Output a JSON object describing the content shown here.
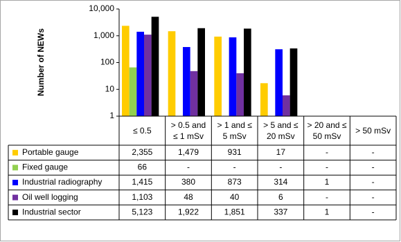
{
  "chart_data": {
    "type": "bar",
    "y_label": "Number of NEWs",
    "log_scale": true,
    "grid": false,
    "categories": [
      "≤ 0.5",
      "> 0.5 and ≤ 1 mSv",
      "> 1 and ≤ 5 mSv",
      "> 5 and ≤ 20 mSv",
      "> 20 and ≤ 50 mSv",
      "> 50 mSv"
    ],
    "ylim": [
      1,
      10000
    ],
    "yticks": [
      1,
      10,
      100,
      {
        "value": 1000,
        "label": "1,000"
      },
      {
        "value": 10000,
        "label": "10,000"
      }
    ],
    "series": [
      {
        "name": "Portable gauge",
        "color": "#ffcc00",
        "values": [
          2355,
          1479,
          931,
          17,
          null,
          null
        ],
        "value_labels": [
          "2,355",
          "1,479",
          "931",
          "17",
          "-",
          "-"
        ]
      },
      {
        "name": "Fixed gauge",
        "color": "#92d050",
        "values": [
          66,
          null,
          null,
          null,
          null,
          null
        ],
        "value_labels": [
          "66",
          "-",
          "-",
          "-",
          "-",
          "-"
        ]
      },
      {
        "name": "Industrial radiography",
        "color": "#0000ff",
        "values": [
          1415,
          380,
          873,
          314,
          1,
          null
        ],
        "value_labels": [
          "1,415",
          "380",
          "873",
          "314",
          "1",
          "-"
        ]
      },
      {
        "name": "Oil well logging",
        "color": "#7030a0",
        "values": [
          1103,
          48,
          40,
          6,
          null,
          null
        ],
        "value_labels": [
          "1,103",
          "48",
          "40",
          "6",
          "-",
          "-"
        ]
      },
      {
        "name": "Industrial sector",
        "color": "#000000",
        "values": [
          5123,
          1922,
          1851,
          337,
          1,
          null
        ],
        "value_labels": [
          "5,123",
          "1,922",
          "1,851",
          "337",
          "1",
          "-"
        ]
      }
    ]
  }
}
